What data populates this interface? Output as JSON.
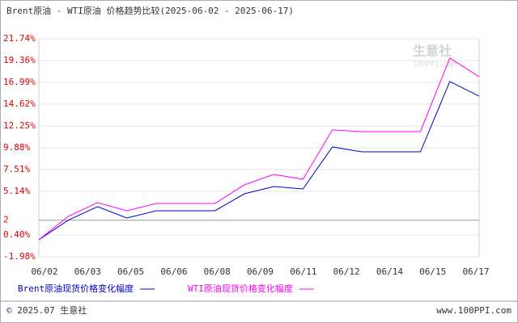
{
  "chart_data": {
    "type": "line",
    "title": "Brent原油 - WTI原油 价格趋势比较(2025-06-02 - 2025-06-17)",
    "x_labels": [
      "06/02",
      "06/03",
      "06/05",
      "06/06",
      "06/08",
      "06/09",
      "06/11",
      "06/12",
      "06/14",
      "06/15",
      "06/17"
    ],
    "series": [
      {
        "name": "Brent原油现货价格变化幅度",
        "color": "#0000cc",
        "values": [
          -0.13,
          2.0,
          3.47,
          2.24,
          3.03,
          3.03,
          3.03,
          4.87,
          5.66,
          5.4,
          9.97,
          9.44,
          9.44,
          9.44,
          17.09,
          15.5
        ]
      },
      {
        "name": "WTI原油现货价格变化幅度",
        "color": "#ff00ff",
        "values": [
          -0.13,
          2.41,
          3.91,
          3.03,
          3.82,
          3.82,
          3.82,
          5.84,
          6.98,
          6.46,
          11.82,
          11.64,
          11.64,
          11.64,
          19.64,
          17.62
        ]
      }
    ],
    "ylim": [
      -1.98,
      21.74
    ],
    "yticks": [
      {
        "value": -1.98,
        "label": "-1.98%"
      },
      {
        "value": 0.4,
        "label": "0.40%"
      },
      2,
      {
        "value": 5.14,
        "label": "5.14%"
      },
      {
        "value": 7.51,
        "label": "7.51%"
      },
      {
        "value": 9.88,
        "label": "9.88%"
      },
      {
        "value": 12.25,
        "label": "12.25%"
      },
      {
        "value": 14.62,
        "label": "14.62%"
      },
      {
        "value": 16.99,
        "label": "16.99%"
      },
      {
        "value": 19.36,
        "label": "19.36%"
      },
      {
        "value": 21.74,
        "label": "21.74%"
      }
    ],
    "grid": true,
    "watermark": "生意社",
    "watermark_sub": "100PPI.COM",
    "footer_left": "© 2025.07 生意社",
    "footer_right": "www.100PPI.com"
  }
}
